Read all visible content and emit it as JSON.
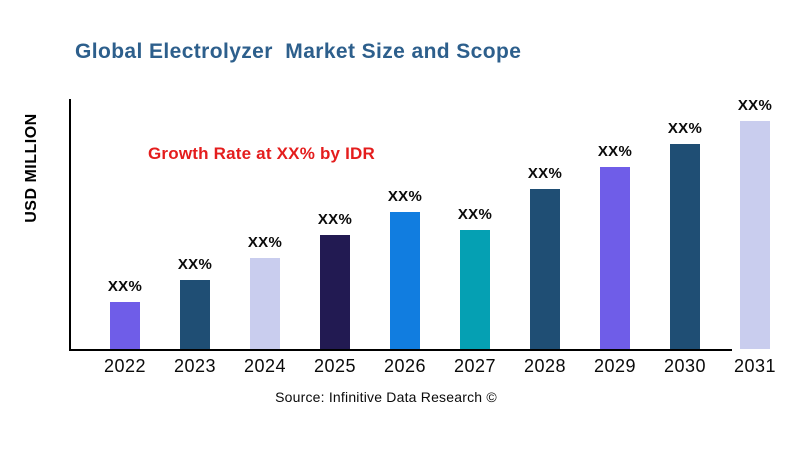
{
  "title": {
    "text": "Global Electrolyzer  Market Size and Scope",
    "color": "#2d5f8c"
  },
  "annotation": {
    "text": "Growth Rate at XX% by IDR",
    "color": "#e41d1d"
  },
  "y_axis_label": "USD MILLION",
  "source": "Source: Infinitive Data Research ©",
  "chart_data": {
    "type": "bar",
    "title": "Global Electrolyzer  Market Size and Scope",
    "xlabel": "",
    "ylabel": "USD MILLION",
    "categories": [
      "2022",
      "2023",
      "2024",
      "2025",
      "2026",
      "2027",
      "2028",
      "2029",
      "2030",
      "2031"
    ],
    "values": [
      47,
      69,
      91,
      114,
      137,
      119,
      160,
      182,
      205,
      228
    ],
    "bar_labels": [
      "XX%",
      "XX%",
      "XX%",
      "XX%",
      "XX%",
      "XX%",
      "XX%",
      "XX%",
      "XX%",
      "XX%"
    ],
    "bar_colors": [
      "#6f5de8",
      "#1f4e74",
      "#c9cdee",
      "#221a52",
      "#117de0",
      "#05a0b3",
      "#1f4e74",
      "#6f5de8",
      "#1f4e74",
      "#c9cdee"
    ],
    "ylim": [
      0,
      250
    ],
    "grid": false,
    "legend": false,
    "note": "No numeric y-scale shown; values are relative bar heights, data labels are XX% placeholders"
  },
  "axis_color": "#000000"
}
